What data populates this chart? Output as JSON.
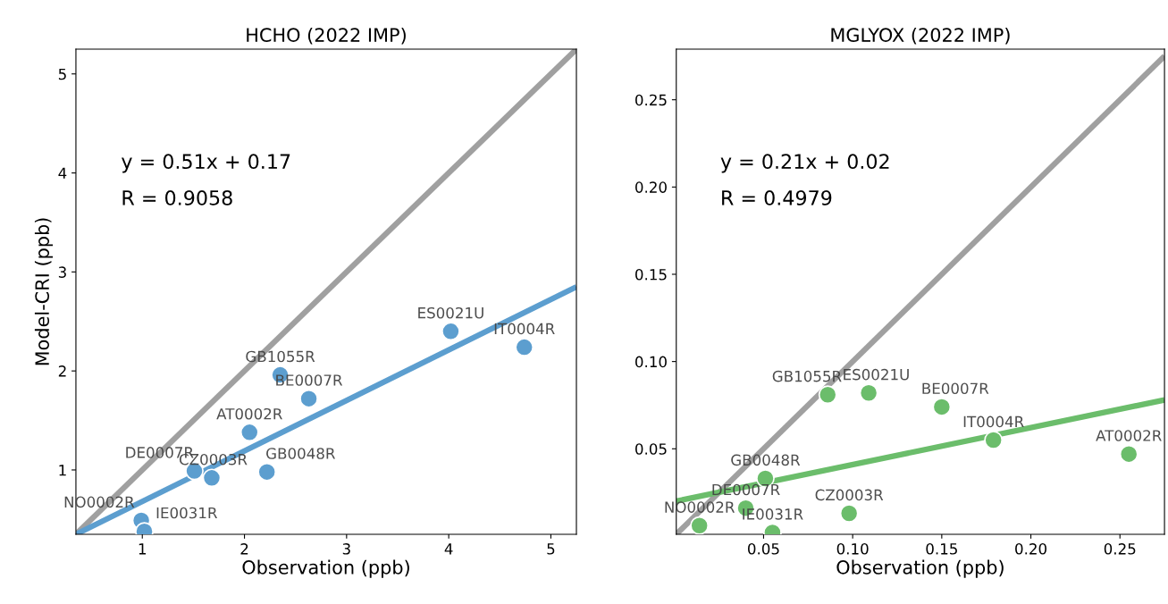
{
  "chart_data": [
    {
      "type": "scatter",
      "title": "HCHO (2022 IMP)",
      "xlabel": "Observation (ppb)",
      "ylabel": "Model-CRI (ppb)",
      "xlim": [
        0.35,
        5.25
      ],
      "ylim": [
        0.35,
        5.25
      ],
      "xticks": [
        1,
        2,
        3,
        4,
        5
      ],
      "yticks": [
        1,
        2,
        3,
        4,
        5
      ],
      "grid": false,
      "marker": "circle",
      "series": [
        {
          "type": "line",
          "marker": "none",
          "color": "#a0a0a0",
          "x": [
            0.35,
            5.25
          ],
          "values": [
            0.35,
            5.25
          ]
        },
        {
          "type": "line",
          "marker": "none",
          "color": "#5c9ecf",
          "x": [
            0.35,
            5.25
          ],
          "values": [
            0.35,
            2.85
          ]
        },
        {
          "type": "scatter",
          "color": "#5c9ecf",
          "x": [
            4.02,
            4.74,
            2.35,
            2.63,
            2.05,
            1.51,
            1.68,
            2.22,
            0.99,
            1.02
          ],
          "values": [
            2.4,
            2.24,
            1.96,
            1.72,
            1.38,
            0.99,
            0.92,
            0.98,
            0.49,
            0.38
          ]
        }
      ],
      "annotations": [
        "y = 0.51x + 0.17",
        "R = 0.9058",
        {
          "text": "ES0021U",
          "x": 4.02,
          "y": 2.4
        },
        {
          "text": "IT0004R",
          "x": 4.74,
          "y": 2.24
        },
        {
          "text": "GB1055R",
          "x": 2.35,
          "y": 1.96
        },
        {
          "text": "BE0007R",
          "x": 2.63,
          "y": 1.72
        },
        {
          "text": "AT0002R",
          "x": 2.05,
          "y": 1.38
        },
        {
          "text": "DE0007R",
          "x": 1.51,
          "y": 0.99
        },
        {
          "text": "CZ0003R",
          "x": 1.68,
          "y": 0.92
        },
        {
          "text": "GB0048R",
          "x": 2.22,
          "y": 0.98
        },
        {
          "text": "NO0002R",
          "x": 0.99,
          "y": 0.49
        },
        {
          "text": "IE0031R",
          "x": 1.02,
          "y": 0.38
        }
      ]
    },
    {
      "type": "scatter",
      "title": "MGLYOX (2022 IMP)",
      "xlabel": "Observation (ppb)",
      "xlim": [
        0.001,
        0.275
      ],
      "ylim": [
        0.001,
        0.279
      ],
      "xticks": [
        {
          "value": 0.05,
          "label": "0.05"
        },
        {
          "value": 0.1,
          "label": "0.10"
        },
        {
          "value": 0.15,
          "label": "0.15"
        },
        {
          "value": 0.2,
          "label": "0.20"
        },
        {
          "value": 0.25,
          "label": "0.25"
        }
      ],
      "yticks": [
        {
          "value": 0.05,
          "label": "0.05"
        },
        {
          "value": 0.1,
          "label": "0.10"
        },
        {
          "value": 0.15,
          "label": "0.15"
        },
        {
          "value": 0.2,
          "label": "0.20"
        },
        {
          "value": 0.25,
          "label": "0.25"
        }
      ],
      "grid": false,
      "marker": "circle",
      "series": [
        {
          "type": "line",
          "marker": "none",
          "color": "#a0a0a0",
          "x": [
            0.001,
            0.275
          ],
          "values": [
            0.001,
            0.275
          ]
        },
        {
          "type": "line",
          "marker": "none",
          "color": "#6bbd6b",
          "x": [
            0.001,
            0.275
          ],
          "values": [
            0.02,
            0.078
          ]
        },
        {
          "type": "scatter",
          "color": "#6bbd6b",
          "x": [
            0.086,
            0.109,
            0.15,
            0.179,
            0.255,
            0.051,
            0.04,
            0.098,
            0.014,
            0.055
          ],
          "values": [
            0.081,
            0.082,
            0.074,
            0.055,
            0.047,
            0.033,
            0.016,
            0.013,
            0.006,
            0.002
          ]
        }
      ],
      "annotations": [
        "y = 0.21x + 0.02",
        "R = 0.4979",
        {
          "text": "GB1055R",
          "x": 0.086,
          "y": 0.081
        },
        {
          "text": "ES0021U",
          "x": 0.109,
          "y": 0.082
        },
        {
          "text": "BE0007R",
          "x": 0.15,
          "y": 0.074
        },
        {
          "text": "IT0004R",
          "x": 0.179,
          "y": 0.055
        },
        {
          "text": "AT0002R",
          "x": 0.255,
          "y": 0.047
        },
        {
          "text": "GB0048R",
          "x": 0.051,
          "y": 0.033
        },
        {
          "text": "DE0007R",
          "x": 0.04,
          "y": 0.016
        },
        {
          "text": "CZ0003R",
          "x": 0.098,
          "y": 0.013
        },
        {
          "text": "NO0002R",
          "x": 0.014,
          "y": 0.006
        },
        {
          "text": "IE0031R",
          "x": 0.055,
          "y": 0.002
        }
      ]
    }
  ]
}
